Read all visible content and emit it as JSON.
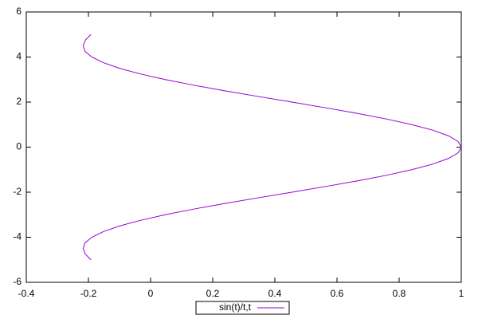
{
  "chart_data": {
    "type": "line",
    "x": [
      -0.192,
      -0.21,
      -0.217,
      -0.211,
      -0.189,
      -0.152,
      -0.1,
      -0.033,
      0.047,
      0.139,
      0.239,
      0.346,
      0.455,
      0.562,
      0.665,
      0.759,
      0.841,
      0.909,
      0.959,
      0.99,
      1,
      0.99,
      0.959,
      0.909,
      0.841,
      0.759,
      0.665,
      0.562,
      0.455,
      0.346,
      0.239,
      0.139,
      0.047,
      -0.033,
      -0.1,
      -0.152,
      -0.189,
      -0.211,
      -0.217,
      -0.21,
      -0.192
    ],
    "series": [
      {
        "name": "sin(t)/t,t",
        "color": "#9400d3",
        "values": [
          -5,
          -4.75,
          -4.5,
          -4.25,
          -4,
          -3.75,
          -3.5,
          -3.25,
          -3,
          -2.75,
          -2.5,
          -2.25,
          -2,
          -1.75,
          -1.5,
          -1.25,
          -1,
          -0.75,
          -0.5,
          -0.25,
          0,
          0.25,
          0.5,
          0.75,
          1,
          1.25,
          1.5,
          1.75,
          2,
          2.25,
          2.5,
          2.75,
          3,
          3.25,
          3.5,
          3.75,
          4,
          4.25,
          4.5,
          4.75,
          5
        ]
      }
    ],
    "xlim": [
      -0.4,
      1
    ],
    "xticks": [
      -0.4,
      -0.2,
      0,
      0.2,
      0.4,
      0.6,
      0.8,
      1
    ],
    "ylim": [
      -6,
      6
    ],
    "yticks": [
      -6,
      -4,
      -2,
      0,
      2,
      4,
      6
    ],
    "legend": "bottom"
  }
}
